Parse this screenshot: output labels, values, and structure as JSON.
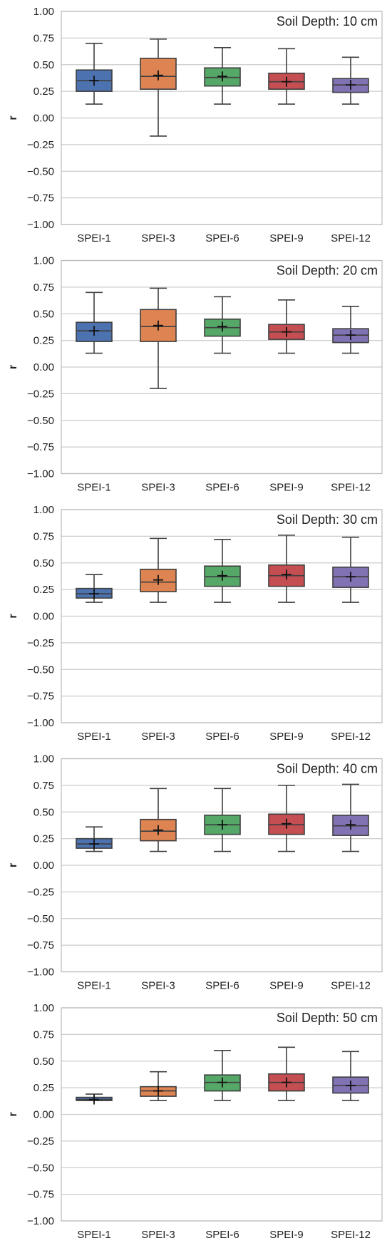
{
  "colors": {
    "grid": "#cccccc",
    "frame": "#bbbbbb",
    "box_edge": "#3f3f3f",
    "mean_marker": "#111111",
    "series": [
      "#4c72b0",
      "#dd8452",
      "#55a868",
      "#c44e52",
      "#8172b3"
    ]
  },
  "chart_data": [
    {
      "type": "box",
      "annotation": "Soil Depth: 10 cm",
      "ylabel": "r",
      "ylim": [
        -1.0,
        1.0
      ],
      "yticks": [
        "1.00",
        "0.75",
        "0.50",
        "0.25",
        "0.00",
        "−0.25",
        "−0.50",
        "−0.75",
        "−1.00"
      ],
      "ytick_values": [
        1.0,
        0.75,
        0.5,
        0.25,
        0.0,
        -0.25,
        -0.5,
        -0.75,
        -1.0
      ],
      "grid": true,
      "categories": [
        "SPEI-1",
        "SPEI-3",
        "SPEI-6",
        "SPEI-9",
        "SPEI-12"
      ],
      "boxes": [
        {
          "min": 0.13,
          "q1": 0.25,
          "median": 0.35,
          "q3": 0.45,
          "max": 0.7,
          "mean": 0.35
        },
        {
          "min": -0.17,
          "q1": 0.27,
          "median": 0.39,
          "q3": 0.56,
          "max": 0.74,
          "mean": 0.4
        },
        {
          "min": 0.13,
          "q1": 0.3,
          "median": 0.38,
          "q3": 0.47,
          "max": 0.66,
          "mean": 0.39
        },
        {
          "min": 0.13,
          "q1": 0.27,
          "median": 0.34,
          "q3": 0.42,
          "max": 0.65,
          "mean": 0.34
        },
        {
          "min": 0.13,
          "q1": 0.24,
          "median": 0.31,
          "q3": 0.37,
          "max": 0.57,
          "mean": 0.31
        }
      ]
    },
    {
      "type": "box",
      "annotation": "Soil Depth: 20 cm",
      "ylabel": "r",
      "ylim": [
        -1.0,
        1.0
      ],
      "yticks": [
        "1.00",
        "0.75",
        "0.50",
        "0.25",
        "0.00",
        "−0.25",
        "−0.50",
        "−0.75",
        "−1.00"
      ],
      "ytick_values": [
        1.0,
        0.75,
        0.5,
        0.25,
        0.0,
        -0.25,
        -0.5,
        -0.75,
        -1.0
      ],
      "grid": true,
      "categories": [
        "SPEI-1",
        "SPEI-3",
        "SPEI-6",
        "SPEI-9",
        "SPEI-12"
      ],
      "boxes": [
        {
          "min": 0.13,
          "q1": 0.24,
          "median": 0.34,
          "q3": 0.42,
          "max": 0.7,
          "mean": 0.34
        },
        {
          "min": -0.2,
          "q1": 0.24,
          "median": 0.38,
          "q3": 0.54,
          "max": 0.74,
          "mean": 0.39
        },
        {
          "min": 0.13,
          "q1": 0.29,
          "median": 0.37,
          "q3": 0.45,
          "max": 0.66,
          "mean": 0.38
        },
        {
          "min": 0.13,
          "q1": 0.26,
          "median": 0.33,
          "q3": 0.4,
          "max": 0.63,
          "mean": 0.33
        },
        {
          "min": 0.13,
          "q1": 0.23,
          "median": 0.3,
          "q3": 0.36,
          "max": 0.57,
          "mean": 0.3
        }
      ]
    },
    {
      "type": "box",
      "annotation": "Soil Depth: 30 cm",
      "ylabel": "r",
      "ylim": [
        -1.0,
        1.0
      ],
      "yticks": [
        "1.00",
        "0.75",
        "0.50",
        "0.25",
        "0.00",
        "−0.25",
        "−0.50",
        "−0.75",
        "−1.00"
      ],
      "ytick_values": [
        1.0,
        0.75,
        0.5,
        0.25,
        0.0,
        -0.25,
        -0.5,
        -0.75,
        -1.0
      ],
      "grid": true,
      "categories": [
        "SPEI-1",
        "SPEI-3",
        "SPEI-6",
        "SPEI-9",
        "SPEI-12"
      ],
      "boxes": [
        {
          "min": 0.13,
          "q1": 0.17,
          "median": 0.21,
          "q3": 0.26,
          "max": 0.39,
          "mean": 0.21
        },
        {
          "min": 0.13,
          "q1": 0.23,
          "median": 0.32,
          "q3": 0.44,
          "max": 0.73,
          "mean": 0.34
        },
        {
          "min": 0.13,
          "q1": 0.28,
          "median": 0.37,
          "q3": 0.47,
          "max": 0.72,
          "mean": 0.38
        },
        {
          "min": 0.13,
          "q1": 0.28,
          "median": 0.38,
          "q3": 0.48,
          "max": 0.76,
          "mean": 0.39
        },
        {
          "min": 0.13,
          "q1": 0.27,
          "median": 0.37,
          "q3": 0.46,
          "max": 0.74,
          "mean": 0.37
        }
      ]
    },
    {
      "type": "box",
      "annotation": "Soil Depth: 40 cm",
      "ylabel": "r",
      "ylim": [
        -1.0,
        1.0
      ],
      "yticks": [
        "1.00",
        "0.75",
        "0.50",
        "0.25",
        "0.00",
        "−0.25",
        "−0.50",
        "−0.75",
        "−1.00"
      ],
      "ytick_values": [
        1.0,
        0.75,
        0.5,
        0.25,
        0.0,
        -0.25,
        -0.5,
        -0.75,
        -1.0
      ],
      "grid": true,
      "categories": [
        "SPEI-1",
        "SPEI-3",
        "SPEI-6",
        "SPEI-9",
        "SPEI-12"
      ],
      "boxes": [
        {
          "min": 0.13,
          "q1": 0.16,
          "median": 0.2,
          "q3": 0.25,
          "max": 0.36,
          "mean": 0.2
        },
        {
          "min": 0.13,
          "q1": 0.23,
          "median": 0.32,
          "q3": 0.43,
          "max": 0.72,
          "mean": 0.33
        },
        {
          "min": 0.13,
          "q1": 0.29,
          "median": 0.38,
          "q3": 0.47,
          "max": 0.72,
          "mean": 0.38
        },
        {
          "min": 0.13,
          "q1": 0.29,
          "median": 0.38,
          "q3": 0.48,
          "max": 0.75,
          "mean": 0.39
        },
        {
          "min": 0.13,
          "q1": 0.28,
          "median": 0.37,
          "q3": 0.47,
          "max": 0.76,
          "mean": 0.38
        }
      ]
    },
    {
      "type": "box",
      "annotation": "Soil Depth: 50 cm",
      "ylabel": "r",
      "ylim": [
        -1.0,
        1.0
      ],
      "yticks": [
        "1.00",
        "0.75",
        "0.50",
        "0.25",
        "0.00",
        "−0.25",
        "−0.50",
        "−0.75",
        "−1.00"
      ],
      "ytick_values": [
        1.0,
        0.75,
        0.5,
        0.25,
        0.0,
        -0.25,
        -0.5,
        -0.75,
        -1.0
      ],
      "grid": true,
      "categories": [
        "SPEI-1",
        "SPEI-3",
        "SPEI-6",
        "SPEI-9",
        "SPEI-12"
      ],
      "boxes": [
        {
          "min": 0.13,
          "q1": 0.13,
          "median": 0.14,
          "q3": 0.16,
          "max": 0.19,
          "mean": 0.14
        },
        {
          "min": 0.13,
          "q1": 0.17,
          "median": 0.22,
          "q3": 0.26,
          "max": 0.4,
          "mean": 0.22
        },
        {
          "min": 0.13,
          "q1": 0.22,
          "median": 0.3,
          "q3": 0.37,
          "max": 0.6,
          "mean": 0.3
        },
        {
          "min": 0.13,
          "q1": 0.22,
          "median": 0.3,
          "q3": 0.38,
          "max": 0.63,
          "mean": 0.3
        },
        {
          "min": 0.13,
          "q1": 0.2,
          "median": 0.27,
          "q3": 0.35,
          "max": 0.59,
          "mean": 0.27
        }
      ]
    }
  ]
}
